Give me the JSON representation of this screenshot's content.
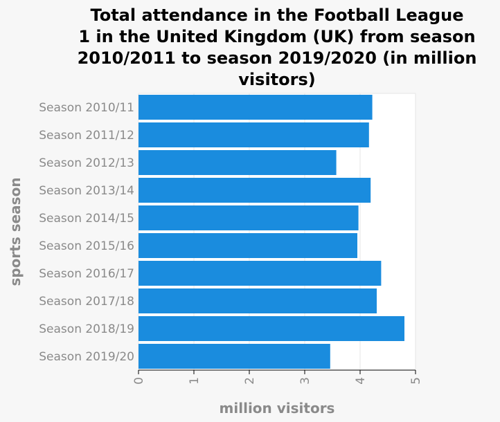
{
  "chart_data": {
    "type": "bar",
    "orientation": "horizontal",
    "title": "Total attendance in the Football League 1 in the United Kingdom (UK) from season 2010/2011 to season 2019/2020 (in million visitors)",
    "title_lines": [
      "Total attendance in the Football League",
      "1 in the United Kingdom (UK) from season",
      "2010/2011 to season 2019/2020 (in million",
      "visitors)"
    ],
    "xlabel": "million visitors",
    "ylabel": "sports season",
    "xlim": [
      0,
      5
    ],
    "xticks": [
      "0",
      "1",
      "2",
      "3",
      "4",
      "5"
    ],
    "categories": [
      "Season 2010/11",
      "Season 2011/12",
      "Season 2012/13",
      "Season 2013/14",
      "Season 2014/15",
      "Season 2015/16",
      "Season 2016/17",
      "Season 2017/18",
      "Season 2018/19",
      "Season 2019/20"
    ],
    "values": [
      4.22,
      4.16,
      3.57,
      4.19,
      3.97,
      3.95,
      4.38,
      4.3,
      4.8,
      3.46
    ],
    "bar_color": "#1a8cde",
    "grid": true
  }
}
